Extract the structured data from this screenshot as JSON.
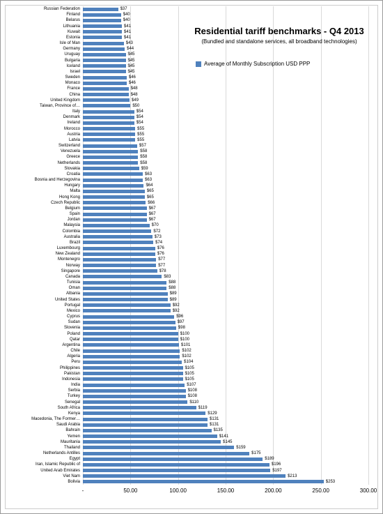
{
  "chart": {
    "type": "bar-horizontal",
    "title": "Residential tariff benchmarks - Q4 2013",
    "subtitle": "(Bundled and standalone  services, all broadband technologies)",
    "legend": {
      "color": "#4f81bd",
      "label": "Average of Monthly Subscription USD PPP"
    },
    "background": "#ffffff",
    "grid_color": "#d9d9d9",
    "bar_color": "#4f81bd",
    "label_fontsize": 6,
    "title_fontsize": 13,
    "x": {
      "min": 0,
      "max": 300,
      "step": 50,
      "ticks": [
        "-",
        "50.00",
        "100.00",
        "150.00",
        "200.00",
        "250.00",
        "300.00"
      ]
    },
    "rows": [
      {
        "label": "Russian Federation",
        "value": 37,
        "display": "$37"
      },
      {
        "label": "Finland",
        "value": 40,
        "display": "$40"
      },
      {
        "label": "Belarus",
        "value": 40,
        "display": "$40"
      },
      {
        "label": "Lithuania",
        "value": 41,
        "display": "$41"
      },
      {
        "label": "Kuwait",
        "value": 41,
        "display": "$41"
      },
      {
        "label": "Estonia",
        "value": 41,
        "display": "$41"
      },
      {
        "label": "Isle of Man",
        "value": 43,
        "display": "$43"
      },
      {
        "label": "Germany",
        "value": 44,
        "display": "$44"
      },
      {
        "label": "Uruguay",
        "value": 45,
        "display": "$45"
      },
      {
        "label": "Bulgaria",
        "value": 45,
        "display": "$45"
      },
      {
        "label": "Iceland",
        "value": 45,
        "display": "$45"
      },
      {
        "label": "Israel",
        "value": 45,
        "display": "$45"
      },
      {
        "label": "Sweden",
        "value": 46,
        "display": "$46"
      },
      {
        "label": "Monaco",
        "value": 46,
        "display": "$46"
      },
      {
        "label": "France",
        "value": 48,
        "display": "$48"
      },
      {
        "label": "China",
        "value": 48,
        "display": "$48"
      },
      {
        "label": "United Kingdom",
        "value": 49,
        "display": "$49"
      },
      {
        "label": "Taiwan, Province of…",
        "value": 50,
        "display": "$50"
      },
      {
        "label": "Italy",
        "value": 54,
        "display": "$54"
      },
      {
        "label": "Denmark",
        "value": 54,
        "display": "$54"
      },
      {
        "label": "Ireland",
        "value": 54,
        "display": "$54"
      },
      {
        "label": "Morocco",
        "value": 55,
        "display": "$55"
      },
      {
        "label": "Austria",
        "value": 55,
        "display": "$55"
      },
      {
        "label": "Latvia",
        "value": 55,
        "display": "$55"
      },
      {
        "label": "Switzerland",
        "value": 57,
        "display": "$57"
      },
      {
        "label": "Venezuela",
        "value": 58,
        "display": "$58"
      },
      {
        "label": "Greece",
        "value": 58,
        "display": "$58"
      },
      {
        "label": "Netherlands",
        "value": 58,
        "display": "$58"
      },
      {
        "label": "Slovakia",
        "value": 59,
        "display": "$59"
      },
      {
        "label": "Croatia",
        "value": 63,
        "display": "$63"
      },
      {
        "label": "Bosnia and Herzegovina",
        "value": 63,
        "display": "$63"
      },
      {
        "label": "Hungary",
        "value": 64,
        "display": "$64"
      },
      {
        "label": "Malta",
        "value": 65,
        "display": "$65"
      },
      {
        "label": "Hong Kong",
        "value": 65,
        "display": "$65"
      },
      {
        "label": "Czech Republic",
        "value": 66,
        "display": "$66"
      },
      {
        "label": "Belgium",
        "value": 67,
        "display": "$67"
      },
      {
        "label": "Spain",
        "value": 67,
        "display": "$67"
      },
      {
        "label": "Jordan",
        "value": 67,
        "display": "$67"
      },
      {
        "label": "Malaysia",
        "value": 70,
        "display": "$70"
      },
      {
        "label": "Colombia",
        "value": 72,
        "display": "$72"
      },
      {
        "label": "Australia",
        "value": 73,
        "display": "$73"
      },
      {
        "label": "Brazil",
        "value": 74,
        "display": "$74"
      },
      {
        "label": "Luxembourg",
        "value": 76,
        "display": "$76"
      },
      {
        "label": "New Zealand",
        "value": 76,
        "display": "$76"
      },
      {
        "label": "Montenegro",
        "value": 77,
        "display": "$77"
      },
      {
        "label": "Norway",
        "value": 77,
        "display": "$77"
      },
      {
        "label": "Singapore",
        "value": 78,
        "display": "$78"
      },
      {
        "label": "Canada",
        "value": 83,
        "display": "$83"
      },
      {
        "label": "Tunisia",
        "value": 88,
        "display": "$88"
      },
      {
        "label": "Oman",
        "value": 88,
        "display": "$88"
      },
      {
        "label": "Albania",
        "value": 89,
        "display": "$89"
      },
      {
        "label": "United States",
        "value": 89,
        "display": "$89"
      },
      {
        "label": "Portugal",
        "value": 92,
        "display": "$92"
      },
      {
        "label": "Mexico",
        "value": 92,
        "display": "$92"
      },
      {
        "label": "Cyprus",
        "value": 96,
        "display": "$96"
      },
      {
        "label": "Sudan",
        "value": 97,
        "display": "$97"
      },
      {
        "label": "Slovenia",
        "value": 98,
        "display": "$98"
      },
      {
        "label": "Poland",
        "value": 100,
        "display": "$100"
      },
      {
        "label": "Qatar",
        "value": 100,
        "display": "$100"
      },
      {
        "label": "Argentina",
        "value": 101,
        "display": "$101"
      },
      {
        "label": "Chile",
        "value": 102,
        "display": "$102"
      },
      {
        "label": "Algeria",
        "value": 102,
        "display": "$102"
      },
      {
        "label": "Peru",
        "value": 104,
        "display": "$104"
      },
      {
        "label": "Philippines",
        "value": 105,
        "display": "$105"
      },
      {
        "label": "Pakistan",
        "value": 105,
        "display": "$105"
      },
      {
        "label": "Indonesia",
        "value": 105,
        "display": "$105"
      },
      {
        "label": "India",
        "value": 107,
        "display": "$107"
      },
      {
        "label": "Serbia",
        "value": 108,
        "display": "$108"
      },
      {
        "label": "Turkey",
        "value": 108,
        "display": "$108"
      },
      {
        "label": "Senegal",
        "value": 110,
        "display": "$110"
      },
      {
        "label": "South Africa",
        "value": 119,
        "display": "$119"
      },
      {
        "label": "Kenya",
        "value": 129,
        "display": "$129"
      },
      {
        "label": "Macedonia, The Former…",
        "value": 131,
        "display": "$131"
      },
      {
        "label": "Saudi Arabia",
        "value": 131,
        "display": "$131"
      },
      {
        "label": "Bahrain",
        "value": 135,
        "display": "$135"
      },
      {
        "label": "Yemen",
        "value": 141,
        "display": "$141"
      },
      {
        "label": "Mauritania",
        "value": 145,
        "display": "$145"
      },
      {
        "label": "Thailand",
        "value": 159,
        "display": "$159"
      },
      {
        "label": "Netherlands Antilles",
        "value": 175,
        "display": "$175"
      },
      {
        "label": "Egypt",
        "value": 189,
        "display": "$189"
      },
      {
        "label": "Iran, Islamic Republic of",
        "value": 196,
        "display": "$196"
      },
      {
        "label": "United Arab Emirates",
        "value": 197,
        "display": "$197"
      },
      {
        "label": "Viet Nam",
        "value": 213,
        "display": "$213"
      },
      {
        "label": "Bolivia",
        "value": 253,
        "display": "$253"
      }
    ]
  }
}
